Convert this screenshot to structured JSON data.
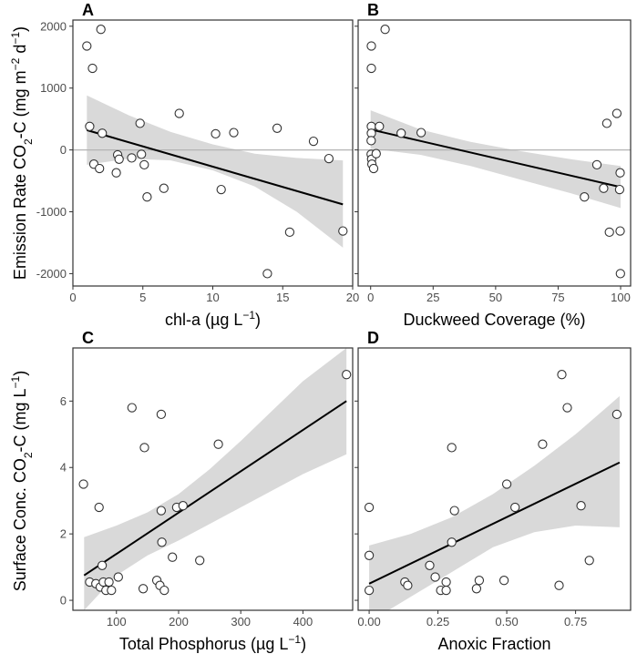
{
  "colors": {
    "ribbon": "#d9d9d9",
    "line": "#000000",
    "zero_line": "#b3b3b3",
    "point_fill": "#ffffff",
    "point_stroke": "#333333",
    "frame": "#333333"
  },
  "ylabels": {
    "top_pre": "Emission Rate CO",
    "top_sub": "2",
    "top_mid": "-C (mg m",
    "top_sup1": "−2",
    "top_d": " d",
    "top_sup2": "−1",
    "top_end": ")",
    "bottom_pre": "Surface Conc. CO",
    "bottom_sub": "2",
    "bottom_mid": "-C (mg L",
    "bottom_sup": "−1",
    "bottom_end": ")"
  },
  "chart_data": [
    {
      "panel": "A",
      "type": "scatter",
      "xlabel_pre": "chl-a (µg L",
      "xlabel_sup": "−1",
      "xlabel_end": ")",
      "xlim": [
        0,
        20
      ],
      "ylim": [
        -2200,
        2100
      ],
      "xticks": [
        0,
        5,
        10,
        15,
        20
      ],
      "xticklabels": [
        "0",
        "5",
        "10",
        "15",
        "20"
      ],
      "yticks": [
        -2000,
        -1000,
        0,
        1000,
        2000
      ],
      "yticklabels": [
        "-2000",
        "-1000",
        "0",
        "1000",
        "2000"
      ],
      "hline": 0,
      "fit": {
        "x": [
          1,
          19.3
        ],
        "y": [
          320,
          -880
        ]
      },
      "ribbon": {
        "x": [
          1,
          4,
          7,
          10,
          13,
          16,
          19.3
        ],
        "upper": [
          880,
          560,
          290,
          90,
          -60,
          -130,
          -170
        ],
        "lower": [
          -240,
          -140,
          -170,
          -330,
          -590,
          -1000,
          -1580
        ]
      },
      "points": [
        {
          "x": 1.0,
          "y": 1680
        },
        {
          "x": 1.4,
          "y": 1320
        },
        {
          "x": 2.0,
          "y": 1950
        },
        {
          "x": 1.2,
          "y": 380
        },
        {
          "x": 2.1,
          "y": 270
        },
        {
          "x": 1.5,
          "y": -230
        },
        {
          "x": 1.9,
          "y": -300
        },
        {
          "x": 3.2,
          "y": -80
        },
        {
          "x": 3.3,
          "y": -150
        },
        {
          "x": 3.1,
          "y": -370
        },
        {
          "x": 4.2,
          "y": -130
        },
        {
          "x": 4.8,
          "y": 430
        },
        {
          "x": 4.9,
          "y": -70
        },
        {
          "x": 5.1,
          "y": -240
        },
        {
          "x": 5.3,
          "y": -760
        },
        {
          "x": 6.5,
          "y": -620
        },
        {
          "x": 7.6,
          "y": 590
        },
        {
          "x": 10.2,
          "y": 260
        },
        {
          "x": 10.6,
          "y": -640
        },
        {
          "x": 11.5,
          "y": 280
        },
        {
          "x": 13.9,
          "y": -2000
        },
        {
          "x": 14.6,
          "y": 350
        },
        {
          "x": 15.5,
          "y": -1330
        },
        {
          "x": 17.2,
          "y": 140
        },
        {
          "x": 18.3,
          "y": -140
        },
        {
          "x": 19.3,
          "y": -1310
        }
      ]
    },
    {
      "panel": "B",
      "type": "scatter",
      "xlabel_pre": "Duckweed Coverage (%)",
      "xlabel_sup": "",
      "xlabel_end": "",
      "xlim": [
        -5,
        104
      ],
      "ylim": [
        -2200,
        2100
      ],
      "xticks": [
        0,
        25,
        50,
        75,
        100
      ],
      "xticklabels": [
        "0",
        "25",
        "50",
        "75",
        "100"
      ],
      "yticks": [
        -2000,
        -1000,
        0,
        1000,
        2000
      ],
      "yticklabels": [],
      "hline": 0,
      "fit": {
        "x": [
          0,
          100
        ],
        "y": [
          330,
          -600
        ]
      },
      "ribbon": {
        "x": [
          0,
          20,
          40,
          60,
          80,
          100
        ],
        "upper": [
          640,
          330,
          130,
          -20,
          -150,
          -260
        ],
        "lower": [
          20,
          -80,
          -260,
          -480,
          -700,
          -940
        ]
      },
      "points": [
        {
          "x": 0.3,
          "y": 1680
        },
        {
          "x": 0.3,
          "y": 1320
        },
        {
          "x": 5.8,
          "y": 1950
        },
        {
          "x": 0.3,
          "y": 380
        },
        {
          "x": 0.3,
          "y": 270
        },
        {
          "x": 0.2,
          "y": 150
        },
        {
          "x": 0.2,
          "y": -70
        },
        {
          "x": 0.4,
          "y": -150
        },
        {
          "x": 0.5,
          "y": -230
        },
        {
          "x": 1.2,
          "y": -300
        },
        {
          "x": 2.2,
          "y": -60
        },
        {
          "x": 3.5,
          "y": 380
        },
        {
          "x": 12.2,
          "y": 270
        },
        {
          "x": 20.2,
          "y": 280
        },
        {
          "x": 85.5,
          "y": -760
        },
        {
          "x": 90.5,
          "y": -240
        },
        {
          "x": 93.2,
          "y": -620
        },
        {
          "x": 94.5,
          "y": 430
        },
        {
          "x": 95.5,
          "y": -1330
        },
        {
          "x": 98.5,
          "y": 590
        },
        {
          "x": 99.6,
          "y": -640
        },
        {
          "x": 99.8,
          "y": -370
        },
        {
          "x": 99.8,
          "y": -1310
        },
        {
          "x": 99.9,
          "y": -2000
        }
      ]
    },
    {
      "panel": "C",
      "type": "scatter",
      "xlabel_pre": "Total Phosphorus (µg L",
      "xlabel_sup": "−1",
      "xlabel_end": ")",
      "xlim": [
        30,
        480
      ],
      "ylim": [
        -0.3,
        7.6
      ],
      "xticks": [
        100,
        200,
        300,
        400
      ],
      "xticklabels": [
        "100",
        "200",
        "300",
        "400"
      ],
      "yticks": [
        0,
        2,
        4,
        6
      ],
      "yticklabels": [
        "0",
        "2",
        "4",
        "6"
      ],
      "hline": null,
      "fit": {
        "x": [
          48,
          470
        ],
        "y": [
          0.75,
          6.0
        ]
      },
      "ribbon": {
        "x": [
          48,
          100,
          150,
          200,
          250,
          300,
          350,
          400,
          470
        ],
        "upper": [
          1.9,
          2.25,
          2.65,
          3.2,
          3.95,
          4.8,
          5.7,
          6.6,
          7.6
        ],
        "lower": [
          -0.3,
          0.75,
          1.35,
          1.8,
          2.3,
          2.8,
          3.3,
          3.8,
          4.4
        ]
      },
      "points": [
        {
          "x": 47,
          "y": 3.5
        },
        {
          "x": 57,
          "y": 0.55
        },
        {
          "x": 67,
          "y": 0.5
        },
        {
          "x": 72,
          "y": 2.8
        },
        {
          "x": 74,
          "y": 0.4
        },
        {
          "x": 77,
          "y": 1.05
        },
        {
          "x": 79,
          "y": 0.55
        },
        {
          "x": 83,
          "y": 0.3
        },
        {
          "x": 88,
          "y": 0.55
        },
        {
          "x": 92,
          "y": 0.3
        },
        {
          "x": 103,
          "y": 0.7
        },
        {
          "x": 125,
          "y": 5.8
        },
        {
          "x": 143,
          "y": 0.35
        },
        {
          "x": 145,
          "y": 4.6
        },
        {
          "x": 165,
          "y": 0.6
        },
        {
          "x": 170,
          "y": 0.45
        },
        {
          "x": 172,
          "y": 2.7
        },
        {
          "x": 172,
          "y": 5.6
        },
        {
          "x": 173,
          "y": 1.75
        },
        {
          "x": 177,
          "y": 0.3
        },
        {
          "x": 190,
          "y": 1.3
        },
        {
          "x": 197,
          "y": 2.8
        },
        {
          "x": 207,
          "y": 2.85
        },
        {
          "x": 234,
          "y": 1.2
        },
        {
          "x": 264,
          "y": 4.7
        },
        {
          "x": 470,
          "y": 6.8
        }
      ]
    },
    {
      "panel": "D",
      "type": "scatter",
      "xlabel_pre": "Anoxic Fraction",
      "xlabel_sup": "",
      "xlabel_end": "",
      "xlim": [
        -0.04,
        0.95
      ],
      "ylim": [
        -0.3,
        7.6
      ],
      "xticks": [
        0,
        0.25,
        0.5,
        0.75
      ],
      "xticklabels": [
        "0.00",
        "0.25",
        "0.50",
        "0.75"
      ],
      "yticks": [
        0,
        2,
        4,
        6
      ],
      "yticklabels": [],
      "hline": null,
      "fit": {
        "x": [
          0,
          0.91
        ],
        "y": [
          0.5,
          4.15
        ]
      },
      "ribbon": {
        "x": [
          0,
          0.15,
          0.3,
          0.45,
          0.6,
          0.75,
          0.91
        ],
        "upper": [
          1.65,
          2.0,
          2.5,
          3.2,
          4.05,
          5.0,
          6.15
        ],
        "lower": [
          -0.65,
          0.1,
          0.85,
          1.6,
          2.05,
          2.25,
          2.2
        ]
      },
      "points": [
        {
          "x": 0.0,
          "y": 2.8
        },
        {
          "x": 0.0,
          "y": 1.35
        },
        {
          "x": 0.0,
          "y": 0.3
        },
        {
          "x": 0.13,
          "y": 0.55
        },
        {
          "x": 0.14,
          "y": 0.45
        },
        {
          "x": 0.22,
          "y": 1.05
        },
        {
          "x": 0.24,
          "y": 0.7
        },
        {
          "x": 0.26,
          "y": 0.3
        },
        {
          "x": 0.28,
          "y": 0.3
        },
        {
          "x": 0.28,
          "y": 0.55
        },
        {
          "x": 0.3,
          "y": 4.6
        },
        {
          "x": 0.3,
          "y": 1.75
        },
        {
          "x": 0.31,
          "y": 2.7
        },
        {
          "x": 0.39,
          "y": 0.35
        },
        {
          "x": 0.4,
          "y": 0.6
        },
        {
          "x": 0.49,
          "y": 0.6
        },
        {
          "x": 0.5,
          "y": 3.5
        },
        {
          "x": 0.53,
          "y": 2.8
        },
        {
          "x": 0.63,
          "y": 4.7
        },
        {
          "x": 0.69,
          "y": 0.45
        },
        {
          "x": 0.7,
          "y": 6.8
        },
        {
          "x": 0.72,
          "y": 5.8
        },
        {
          "x": 0.77,
          "y": 2.85
        },
        {
          "x": 0.8,
          "y": 1.2
        },
        {
          "x": 0.9,
          "y": 5.6
        }
      ]
    }
  ]
}
